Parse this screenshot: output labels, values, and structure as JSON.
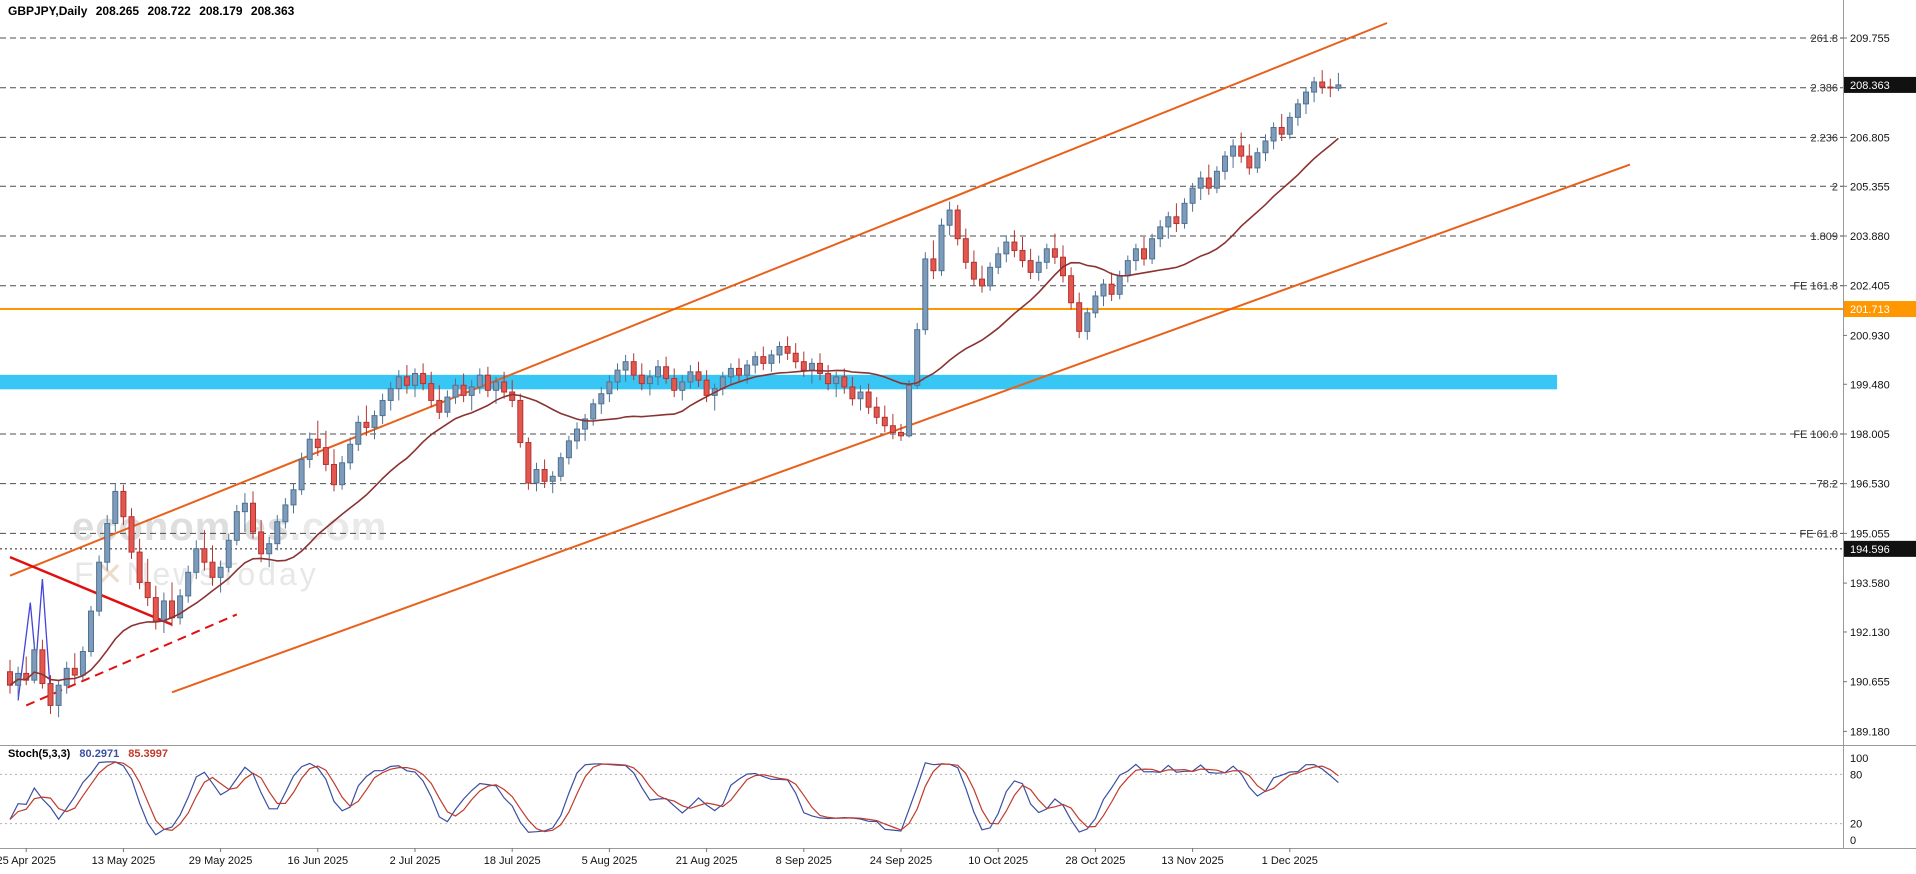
{
  "header": {
    "symbol": "GBPJPY,Daily",
    "open": "208.265",
    "high": "208.722",
    "low": "208.179",
    "close": "208.363"
  },
  "watermark": {
    "brand_pre": "econom",
    "brand_accent": "i",
    "brand_post": "es",
    "brand_suffix": ".com",
    "tagline_pre": "F",
    "tagline_x": "✕",
    "tagline_post": "NewsToday"
  },
  "price_axis": {
    "ticks": [
      209.755,
      206.805,
      205.355,
      203.88,
      202.405,
      200.93,
      199.48,
      198.005,
      196.53,
      195.055,
      193.58,
      192.13,
      190.655,
      189.18
    ],
    "current_label": "208.363",
    "current_value": 208.363,
    "black_line_label": "194.596",
    "black_line_value": 194.596,
    "orange_line_label": "201.713",
    "orange_line_value": 201.713
  },
  "fib_labels": [
    {
      "text": "261.8",
      "price": 209.755
    },
    {
      "text": "2.386",
      "price": 208.28
    },
    {
      "text": "2.236",
      "price": 206.805
    },
    {
      "text": "2",
      "price": 205.355
    },
    {
      "text": "1.809",
      "price": 203.88
    },
    {
      "text": "FE 161.8",
      "price": 202.405
    },
    {
      "text": "FE 100.0",
      "price": 198.005
    },
    {
      "text": "78.2",
      "price": 196.53
    },
    {
      "text": "FE 61.8",
      "price": 195.055
    }
  ],
  "x_axis": {
    "labels": [
      {
        "text": "25 Apr 2025",
        "bar": 2
      },
      {
        "text": "13 May 2025",
        "bar": 14
      },
      {
        "text": "29 May 2025",
        "bar": 26
      },
      {
        "text": "16 Jun 2025",
        "bar": 38
      },
      {
        "text": "2 Jul 2025",
        "bar": 50
      },
      {
        "text": "18 Jul 2025",
        "bar": 62
      },
      {
        "text": "5 Aug 2025",
        "bar": 74
      },
      {
        "text": "21 Aug 2025",
        "bar": 86
      },
      {
        "text": "8 Sep 2025",
        "bar": 98
      },
      {
        "text": "24 Sep 2025",
        "bar": 110
      },
      {
        "text": "10 Oct 2025",
        "bar": 122
      },
      {
        "text": "28 Oct 2025",
        "bar": 134
      },
      {
        "text": "13 Nov 2025",
        "bar": 146
      },
      {
        "text": "1 Dec 2025",
        "bar": 158
      }
    ]
  },
  "stoch": {
    "label": "Stoch(5,3,3)",
    "k_value": "80.2971",
    "d_value": "85.3997",
    "levels": [
      100,
      80,
      20,
      0
    ],
    "dotted_levels": [
      80,
      20
    ]
  },
  "colors": {
    "up_fill": "#7e9cb9",
    "up_border": "#4f7293",
    "down_fill": "#e4574f",
    "down_border": "#b23431",
    "ma": "#8b3333",
    "channel": "#e8611b",
    "trend_red": "#e01010",
    "wedge_blue": "#4444dd",
    "band": "#38c6f4",
    "orange_line": "#ff9800",
    "grid_dash": "#4d4d4d",
    "stoch_k": "#3b4fa0",
    "stoch_d": "#c03a2b",
    "axis_text": "#111111"
  },
  "chart_data": {
    "type": "candlestick",
    "title": "GBPJPY Daily",
    "symbol": "GBPJPY",
    "timeframe": "Daily",
    "ylim": [
      189.0,
      210.2
    ],
    "legend_position": "none",
    "grid": "fibonacci-dashed-horizontal-only",
    "ohlc": [
      [
        190.95,
        191.3,
        190.3,
        190.55
      ],
      [
        190.55,
        191.1,
        190.2,
        190.9
      ],
      [
        190.9,
        191.4,
        190.55,
        190.7
      ],
      [
        190.7,
        191.85,
        190.6,
        191.6
      ],
      [
        191.6,
        191.9,
        190.45,
        190.6
      ],
      [
        190.6,
        190.85,
        189.7,
        189.95
      ],
      [
        189.95,
        190.7,
        189.6,
        190.55
      ],
      [
        190.55,
        191.25,
        190.3,
        191.05
      ],
      [
        191.05,
        191.5,
        190.6,
        190.85
      ],
      [
        190.85,
        191.7,
        190.7,
        191.55
      ],
      [
        191.55,
        192.9,
        191.4,
        192.75
      ],
      [
        192.75,
        194.4,
        192.6,
        194.2
      ],
      [
        194.2,
        195.6,
        193.95,
        195.35
      ],
      [
        195.35,
        196.55,
        195.1,
        196.3
      ],
      [
        196.3,
        196.5,
        195.3,
        195.55
      ],
      [
        195.55,
        195.8,
        194.3,
        194.5
      ],
      [
        194.5,
        194.9,
        193.4,
        193.6
      ],
      [
        193.6,
        194.3,
        192.9,
        193.15
      ],
      [
        193.15,
        193.5,
        192.2,
        192.45
      ],
      [
        192.45,
        193.3,
        192.1,
        193.05
      ],
      [
        193.05,
        193.6,
        192.3,
        192.55
      ],
      [
        192.55,
        193.4,
        192.35,
        193.2
      ],
      [
        193.2,
        194.1,
        193.0,
        193.9
      ],
      [
        193.9,
        194.85,
        193.7,
        194.6
      ],
      [
        194.6,
        195.15,
        193.95,
        194.2
      ],
      [
        194.2,
        194.7,
        193.5,
        193.75
      ],
      [
        193.75,
        194.25,
        193.3,
        194.05
      ],
      [
        194.05,
        195.05,
        193.9,
        194.85
      ],
      [
        194.85,
        195.9,
        194.7,
        195.7
      ],
      [
        195.7,
        196.25,
        195.1,
        195.95
      ],
      [
        195.95,
        196.3,
        194.9,
        195.1
      ],
      [
        195.1,
        195.45,
        194.2,
        194.45
      ],
      [
        194.45,
        194.95,
        194.05,
        194.75
      ],
      [
        194.75,
        195.6,
        194.55,
        195.4
      ],
      [
        195.4,
        196.1,
        195.2,
        195.9
      ],
      [
        195.9,
        196.55,
        195.65,
        196.35
      ],
      [
        196.35,
        197.45,
        196.2,
        197.25
      ],
      [
        197.25,
        198.05,
        197.0,
        197.85
      ],
      [
        197.85,
        198.4,
        197.35,
        197.6
      ],
      [
        197.6,
        198.1,
        196.9,
        197.1
      ],
      [
        197.1,
        197.55,
        196.3,
        196.5
      ],
      [
        196.5,
        197.35,
        196.35,
        197.15
      ],
      [
        197.15,
        197.9,
        196.95,
        197.7
      ],
      [
        197.7,
        198.55,
        197.5,
        198.35
      ],
      [
        198.35,
        198.85,
        197.95,
        198.2
      ],
      [
        198.2,
        198.7,
        197.85,
        198.55
      ],
      [
        198.55,
        199.2,
        198.3,
        199.0
      ],
      [
        199.0,
        199.55,
        198.7,
        199.35
      ],
      [
        199.35,
        199.9,
        199.0,
        199.7
      ],
      [
        199.7,
        200.05,
        199.2,
        199.45
      ],
      [
        199.45,
        199.95,
        199.1,
        199.8
      ],
      [
        199.8,
        200.1,
        199.3,
        199.5
      ],
      [
        199.5,
        199.85,
        198.8,
        199.0
      ],
      [
        199.0,
        199.45,
        198.45,
        198.65
      ],
      [
        198.65,
        199.3,
        198.5,
        199.1
      ],
      [
        199.1,
        199.65,
        198.9,
        199.45
      ],
      [
        199.45,
        199.8,
        198.95,
        199.15
      ],
      [
        199.15,
        199.6,
        198.7,
        199.4
      ],
      [
        199.4,
        199.95,
        199.2,
        199.75
      ],
      [
        199.75,
        200.0,
        199.1,
        199.3
      ],
      [
        199.3,
        199.7,
        198.9,
        199.55
      ],
      [
        199.55,
        199.85,
        199.05,
        199.25
      ],
      [
        199.25,
        199.6,
        198.8,
        199.0
      ],
      [
        199.0,
        199.2,
        197.6,
        197.75
      ],
      [
        197.75,
        197.9,
        196.35,
        196.55
      ],
      [
        196.55,
        197.15,
        196.3,
        196.95
      ],
      [
        196.95,
        197.25,
        196.4,
        196.6
      ],
      [
        196.6,
        196.9,
        196.25,
        196.75
      ],
      [
        196.75,
        197.45,
        196.6,
        197.3
      ],
      [
        197.3,
        197.95,
        197.1,
        197.8
      ],
      [
        197.8,
        198.35,
        197.55,
        198.15
      ],
      [
        198.15,
        198.6,
        197.8,
        198.45
      ],
      [
        198.45,
        199.05,
        198.25,
        198.9
      ],
      [
        198.9,
        199.4,
        198.6,
        199.2
      ],
      [
        199.2,
        199.75,
        198.95,
        199.55
      ],
      [
        199.55,
        200.1,
        199.3,
        199.9
      ],
      [
        199.9,
        200.35,
        199.55,
        200.15
      ],
      [
        200.15,
        200.4,
        199.6,
        199.75
      ],
      [
        199.75,
        200.1,
        199.3,
        199.5
      ],
      [
        199.5,
        199.9,
        199.15,
        199.7
      ],
      [
        199.7,
        200.2,
        199.45,
        200.0
      ],
      [
        200.0,
        200.3,
        199.5,
        199.65
      ],
      [
        199.65,
        199.95,
        199.1,
        199.3
      ],
      [
        199.3,
        199.75,
        199.0,
        199.55
      ],
      [
        199.55,
        200.05,
        199.35,
        199.85
      ],
      [
        199.85,
        200.15,
        199.4,
        199.6
      ],
      [
        199.6,
        199.9,
        198.95,
        199.15
      ],
      [
        199.15,
        199.5,
        198.7,
        199.35
      ],
      [
        199.35,
        199.85,
        199.15,
        199.7
      ],
      [
        199.7,
        200.1,
        199.45,
        199.95
      ],
      [
        199.95,
        200.25,
        199.55,
        199.75
      ],
      [
        199.75,
        200.2,
        199.5,
        200.05
      ],
      [
        200.05,
        200.45,
        199.8,
        200.3
      ],
      [
        200.3,
        200.6,
        199.9,
        200.1
      ],
      [
        200.1,
        200.5,
        199.85,
        200.35
      ],
      [
        200.35,
        200.75,
        200.1,
        200.6
      ],
      [
        200.6,
        200.9,
        200.2,
        200.4
      ],
      [
        200.4,
        200.7,
        199.95,
        200.15
      ],
      [
        200.15,
        200.45,
        199.7,
        199.9
      ],
      [
        199.9,
        200.25,
        199.5,
        200.1
      ],
      [
        200.1,
        200.4,
        199.6,
        199.8
      ],
      [
        199.8,
        200.05,
        199.3,
        199.5
      ],
      [
        199.5,
        199.85,
        199.1,
        199.7
      ],
      [
        199.7,
        199.95,
        199.2,
        199.4
      ],
      [
        199.4,
        199.7,
        198.85,
        199.05
      ],
      [
        199.05,
        199.45,
        198.7,
        199.25
      ],
      [
        199.25,
        199.5,
        198.6,
        198.8
      ],
      [
        198.8,
        199.1,
        198.3,
        198.5
      ],
      [
        198.5,
        198.85,
        198.05,
        198.25
      ],
      [
        198.25,
        198.6,
        197.85,
        198.05
      ],
      [
        198.05,
        198.3,
        197.8,
        197.95
      ],
      [
        197.95,
        199.6,
        197.9,
        199.45
      ],
      [
        199.45,
        201.3,
        199.35,
        201.1
      ],
      [
        201.1,
        203.4,
        200.95,
        203.2
      ],
      [
        203.2,
        203.75,
        202.6,
        202.85
      ],
      [
        202.85,
        204.4,
        202.7,
        204.2
      ],
      [
        204.2,
        204.9,
        203.9,
        204.65
      ],
      [
        204.65,
        204.8,
        203.6,
        203.8
      ],
      [
        203.8,
        204.1,
        202.9,
        203.1
      ],
      [
        203.1,
        203.45,
        202.4,
        202.6
      ],
      [
        202.6,
        203.0,
        202.2,
        202.4
      ],
      [
        202.4,
        203.1,
        202.25,
        202.95
      ],
      [
        202.95,
        203.55,
        202.75,
        203.35
      ],
      [
        203.35,
        203.9,
        203.1,
        203.7
      ],
      [
        203.7,
        204.05,
        203.25,
        203.45
      ],
      [
        203.45,
        203.85,
        202.95,
        203.15
      ],
      [
        203.15,
        203.5,
        202.6,
        202.8
      ],
      [
        202.8,
        203.3,
        202.55,
        203.1
      ],
      [
        203.1,
        203.65,
        202.9,
        203.5
      ],
      [
        203.5,
        203.95,
        203.05,
        203.25
      ],
      [
        203.25,
        203.6,
        202.5,
        202.7
      ],
      [
        202.7,
        202.95,
        201.7,
        201.9
      ],
      [
        201.9,
        202.2,
        200.85,
        201.05
      ],
      [
        201.05,
        201.75,
        200.8,
        201.6
      ],
      [
        201.6,
        202.25,
        201.45,
        202.1
      ],
      [
        202.1,
        202.6,
        201.8,
        202.45
      ],
      [
        202.45,
        202.8,
        201.95,
        202.15
      ],
      [
        202.15,
        202.85,
        202.0,
        202.7
      ],
      [
        202.7,
        203.3,
        202.5,
        203.15
      ],
      [
        203.15,
        203.65,
        202.85,
        203.5
      ],
      [
        203.5,
        203.85,
        203.0,
        203.2
      ],
      [
        203.2,
        203.95,
        203.05,
        203.8
      ],
      [
        203.8,
        204.35,
        203.55,
        204.15
      ],
      [
        204.15,
        204.6,
        203.8,
        204.45
      ],
      [
        204.45,
        204.85,
        204.0,
        204.25
      ],
      [
        204.25,
        205.0,
        204.1,
        204.85
      ],
      [
        204.85,
        205.45,
        204.6,
        205.3
      ],
      [
        205.3,
        205.8,
        204.95,
        205.6
      ],
      [
        205.6,
        206.0,
        205.1,
        205.3
      ],
      [
        205.3,
        205.95,
        205.15,
        205.8
      ],
      [
        205.8,
        206.4,
        205.55,
        206.25
      ],
      [
        206.25,
        206.75,
        205.9,
        206.55
      ],
      [
        206.55,
        206.95,
        206.05,
        206.25
      ],
      [
        206.25,
        206.6,
        205.7,
        205.9
      ],
      [
        205.9,
        206.5,
        205.75,
        206.35
      ],
      [
        206.35,
        206.9,
        206.1,
        206.7
      ],
      [
        206.7,
        207.25,
        206.45,
        207.1
      ],
      [
        207.1,
        207.5,
        206.7,
        206.9
      ],
      [
        206.9,
        207.55,
        206.75,
        207.4
      ],
      [
        207.4,
        207.95,
        207.15,
        207.8
      ],
      [
        207.8,
        208.3,
        207.5,
        208.15
      ],
      [
        208.15,
        208.6,
        207.85,
        208.45
      ],
      [
        208.45,
        208.8,
        208.1,
        208.3
      ],
      [
        208.3,
        208.55,
        208.0,
        208.27
      ],
      [
        208.265,
        208.722,
        208.179,
        208.363
      ]
    ],
    "overlays": {
      "band": {
        "top": 199.76,
        "bottom": 199.33,
        "end_bar": 191
      },
      "orange_hline": 201.713,
      "black_dotted_hline": 194.596,
      "ma": {
        "type": "SMA",
        "period": 20
      },
      "lines": [
        {
          "name": "channel-upper",
          "from": [
            0,
            193.8
          ],
          "to": [
            170,
            210.2
          ],
          "style": "channel",
          "width": 2
        },
        {
          "name": "channel-lower",
          "from": [
            20,
            190.34
          ],
          "to": [
            200,
            206.0
          ],
          "style": "channel",
          "width": 2
        },
        {
          "name": "trend-red-solid",
          "from": [
            0,
            194.35
          ],
          "to": [
            20,
            192.35
          ],
          "style": "red",
          "width": 2.5
        },
        {
          "name": "trend-red-dashed",
          "from": [
            2,
            189.95
          ],
          "to": [
            28,
            192.65
          ],
          "style": "red",
          "width": 2,
          "dash": "9,6"
        }
      ],
      "wedge": {
        "points": [
          [
            1,
            190.1
          ],
          [
            2.5,
            193.0
          ],
          [
            3.2,
            191.2
          ],
          [
            4,
            193.7
          ],
          [
            5,
            190.3
          ]
        ]
      }
    },
    "indicator": {
      "name": "Stochastic",
      "params": [
        5,
        3,
        3
      ],
      "k": 80.2971,
      "d": 85.3997,
      "range": [
        0,
        100
      ]
    }
  }
}
